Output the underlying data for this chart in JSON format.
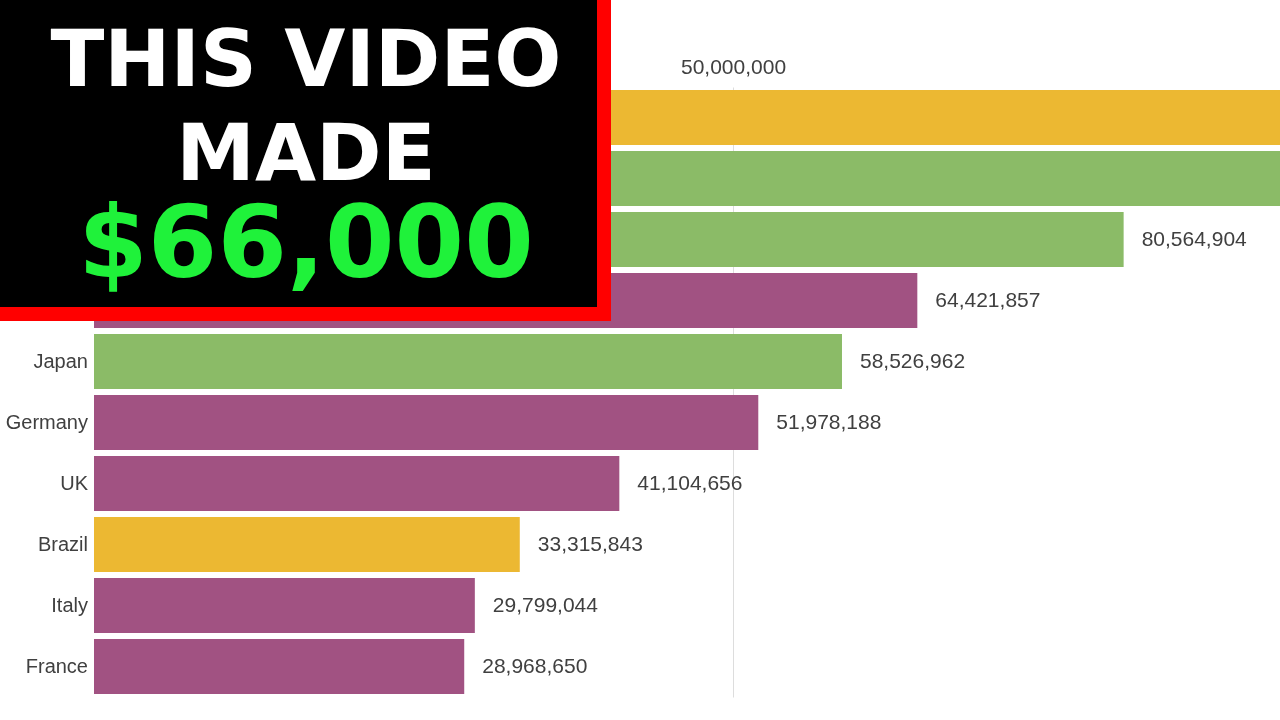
{
  "chart_data": {
    "type": "bar",
    "orientation": "horizontal",
    "categories": [
      null,
      null,
      null,
      null,
      "Japan",
      "Germany",
      "UK",
      "Brazil",
      "Italy",
      "France"
    ],
    "values": [
      92800000,
      92800000,
      80564904,
      64421857,
      58526962,
      51978188,
      41104656,
      33315843,
      29799044,
      28968650
    ],
    "colors": [
      "#ecb832",
      "#8bbb67",
      "#8bbb67",
      "#a15282",
      "#8bbb67",
      "#a15282",
      "#a15282",
      "#ecb832",
      "#a15282",
      "#a15282"
    ],
    "value_labels": [
      null,
      null,
      "80,564,904",
      "64,421,857",
      "58,526,962",
      "51,978,188",
      "41,104,656",
      "33,315,843",
      "29,799,044",
      "28,968,650"
    ],
    "xlim": [
      0,
      92800000
    ],
    "xticks": [
      50000000
    ],
    "grid": "x",
    "annotations": [
      "THIS VIDEO",
      "MADE",
      "$66,000"
    ]
  }
}
